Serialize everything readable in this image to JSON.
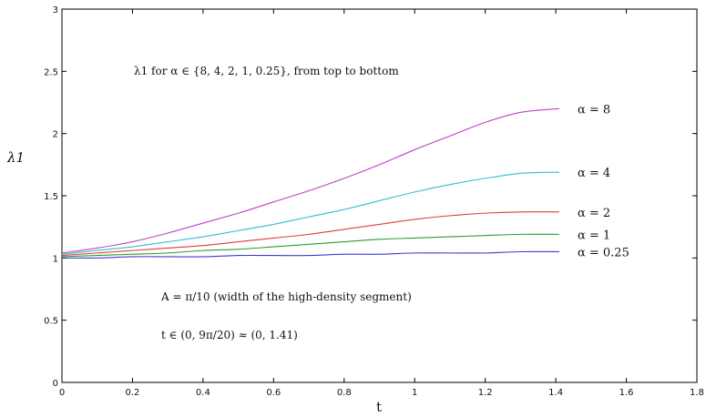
{
  "chart_data": {
    "type": "line",
    "xlabel": "t",
    "ylabel": "λ1",
    "xlim": [
      0,
      1.8
    ],
    "ylim": [
      0,
      3
    ],
    "xticks": [
      0,
      0.2,
      0.4,
      0.6,
      0.8,
      1,
      1.2,
      1.4,
      1.6,
      1.8
    ],
    "xtick_labels": [
      "0",
      "0.2",
      "0.4",
      "0.6",
      "0.8",
      "1",
      "1.2",
      "1.4",
      "1.6",
      "1.8"
    ],
    "yticks": [
      0,
      0.5,
      1,
      1.5,
      2,
      2.5,
      3
    ],
    "ytick_labels": [
      "0",
      "0.5",
      "1",
      "1.5",
      "2",
      "2.5",
      "3"
    ],
    "grid": false,
    "annotations": {
      "top": "λ1 for α ∈ {8, 4, 2, 1, 0.25}, from top to bottom",
      "width": "A = π/10 (width of the high-density segment)",
      "range": "t ∈ (0, 9π/20) ≈ (0, 1.41)"
    },
    "x": [
      0,
      0.1,
      0.2,
      0.3,
      0.4,
      0.5,
      0.6,
      0.7,
      0.8,
      0.9,
      1.0,
      1.1,
      1.2,
      1.3,
      1.41
    ],
    "series": [
      {
        "name": "α = 8",
        "color": "#c040c8",
        "values": [
          1.04,
          1.08,
          1.13,
          1.2,
          1.28,
          1.36,
          1.45,
          1.54,
          1.64,
          1.75,
          1.87,
          1.98,
          2.09,
          2.17,
          2.2
        ]
      },
      {
        "name": "α = 4",
        "color": "#30c0c8",
        "values": [
          1.03,
          1.06,
          1.09,
          1.13,
          1.17,
          1.22,
          1.27,
          1.33,
          1.39,
          1.46,
          1.53,
          1.59,
          1.64,
          1.68,
          1.69
        ]
      },
      {
        "name": "α = 2",
        "color": "#e03c3c",
        "values": [
          1.02,
          1.04,
          1.06,
          1.08,
          1.1,
          1.13,
          1.16,
          1.19,
          1.23,
          1.27,
          1.31,
          1.34,
          1.36,
          1.37,
          1.37
        ]
      },
      {
        "name": "α = 1",
        "color": "#2e9a2e",
        "values": [
          1.01,
          1.02,
          1.03,
          1.04,
          1.06,
          1.07,
          1.09,
          1.11,
          1.13,
          1.15,
          1.16,
          1.17,
          1.18,
          1.19,
          1.19
        ]
      },
      {
        "name": "α = 0.25",
        "color": "#3c3cd0",
        "values": [
          1.0,
          1.0,
          1.01,
          1.01,
          1.01,
          1.02,
          1.02,
          1.02,
          1.03,
          1.03,
          1.04,
          1.04,
          1.04,
          1.05,
          1.05
        ]
      }
    ]
  }
}
